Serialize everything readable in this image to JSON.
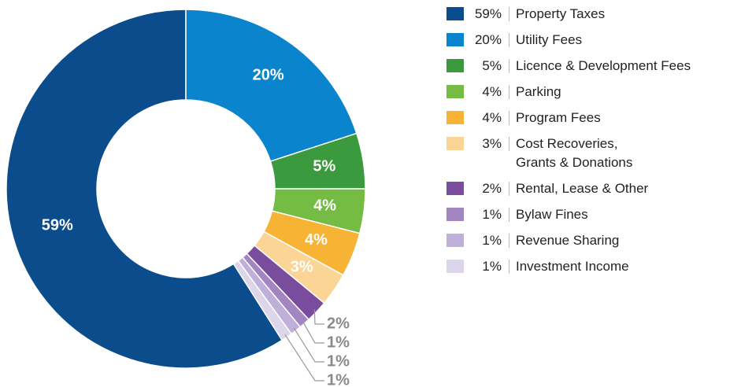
{
  "chart_data": {
    "type": "donut",
    "categories": [
      "Property Taxes",
      "Utility Fees",
      "Licence & Development Fees",
      "Parking",
      "Program Fees",
      "Cost Recoveries,\nGrants & Donations",
      "Rental, Lease & Other",
      "Bylaw Fines",
      "Revenue Sharing",
      "Investment Income"
    ],
    "values": [
      59,
      20,
      5,
      4,
      4,
      3,
      2,
      1,
      1,
      1
    ],
    "value_labels": [
      "59%",
      "20%",
      "5%",
      "4%",
      "4%",
      "3%",
      "2%",
      "1%",
      "1%",
      "1%"
    ],
    "colors": [
      "#0b4d8c",
      "#0a84cc",
      "#3b9a3e",
      "#74bc43",
      "#f7b334",
      "#fbd596",
      "#7a4c9d",
      "#a385c2",
      "#bfb0da",
      "#ddd5ea"
    ],
    "legend": "right"
  }
}
